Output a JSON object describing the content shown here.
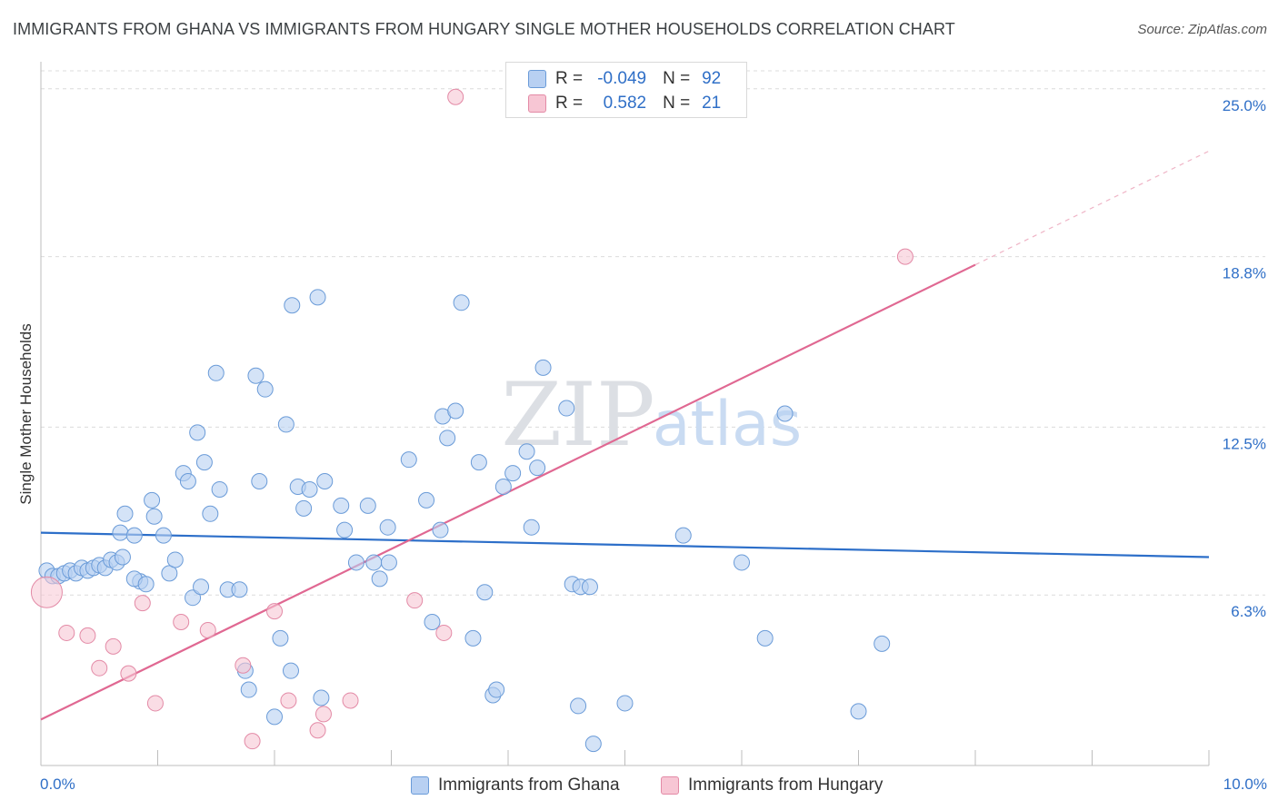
{
  "header": {
    "title": "IMMIGRANTS FROM GHANA VS IMMIGRANTS FROM HUNGARY SINGLE MOTHER HOUSEHOLDS CORRELATION CHART",
    "source": "Source: ZipAtlas.com"
  },
  "legend": {
    "ghana": {
      "r_label": "R =",
      "r_value": "-0.049",
      "n_label": "N =",
      "n_value": "92"
    },
    "hungary": {
      "r_label": "R =",
      "r_value": "0.582",
      "n_label": "N =",
      "n_value": "21"
    }
  },
  "bottom_legend": {
    "ghana": "Immigrants from Ghana",
    "hungary": "Immigrants from Hungary"
  },
  "colors": {
    "ghana_fill": "#b8d0f2",
    "ghana_stroke": "#6a9bd8",
    "ghana_line": "#2d6fc9",
    "hungary_fill": "#f7c6d4",
    "hungary_stroke": "#e38aa6",
    "hungary_line": "#e06892",
    "axis_text": "#2f6fc7",
    "grid": "#dcdcdc"
  },
  "watermark": {
    "zip": "ZIP",
    "atlas": "atlas"
  },
  "chart_data": {
    "type": "scatter",
    "title": "IMMIGRANTS FROM GHANA VS IMMIGRANTS FROM HUNGARY SINGLE MOTHER HOUSEHOLDS CORRELATION CHART",
    "xlabel": "",
    "ylabel": "Single Mother Households",
    "xlim": [
      0,
      10
    ],
    "ylim": [
      0,
      26
    ],
    "x_tick_labels": [
      {
        "value": 0,
        "label": "0.0%"
      },
      {
        "value": 10,
        "label": "10.0%"
      }
    ],
    "x_minor_ticks": [
      1,
      2,
      3,
      4,
      5,
      6,
      7,
      8,
      9,
      10
    ],
    "y_ticks": [
      {
        "value": 6.3,
        "label": "6.3%"
      },
      {
        "value": 12.5,
        "label": "12.5%"
      },
      {
        "value": 18.8,
        "label": "18.8%"
      },
      {
        "value": 25.0,
        "label": "25.0%"
      }
    ],
    "series": [
      {
        "name": "Immigrants from Ghana",
        "key": "ghana",
        "points": [
          [
            0.05,
            7.2
          ],
          [
            0.1,
            7.0
          ],
          [
            0.15,
            7.0
          ],
          [
            0.2,
            7.1
          ],
          [
            0.25,
            7.2
          ],
          [
            0.3,
            7.1
          ],
          [
            0.35,
            7.3
          ],
          [
            0.4,
            7.2
          ],
          [
            0.45,
            7.3
          ],
          [
            0.5,
            7.4
          ],
          [
            0.55,
            7.3
          ],
          [
            0.6,
            7.6
          ],
          [
            0.65,
            7.5
          ],
          [
            0.7,
            7.7
          ],
          [
            0.68,
            8.6
          ],
          [
            0.72,
            9.3
          ],
          [
            0.8,
            8.5
          ],
          [
            0.85,
            6.8
          ],
          [
            0.8,
            6.9
          ],
          [
            0.9,
            6.7
          ],
          [
            0.95,
            9.8
          ],
          [
            0.97,
            9.2
          ],
          [
            1.05,
            8.5
          ],
          [
            1.1,
            7.1
          ],
          [
            1.15,
            7.6
          ],
          [
            1.22,
            10.8
          ],
          [
            1.26,
            10.5
          ],
          [
            1.3,
            6.2
          ],
          [
            1.34,
            12.3
          ],
          [
            1.37,
            6.6
          ],
          [
            1.4,
            11.2
          ],
          [
            1.45,
            9.3
          ],
          [
            1.5,
            14.5
          ],
          [
            1.53,
            10.2
          ],
          [
            1.6,
            6.5
          ],
          [
            1.7,
            6.5
          ],
          [
            1.75,
            3.5
          ],
          [
            1.78,
            2.8
          ],
          [
            1.84,
            14.4
          ],
          [
            1.87,
            10.5
          ],
          [
            1.92,
            13.9
          ],
          [
            2.0,
            1.8
          ],
          [
            2.05,
            4.7
          ],
          [
            2.1,
            12.6
          ],
          [
            2.14,
            3.5
          ],
          [
            2.15,
            17.0
          ],
          [
            2.2,
            10.3
          ],
          [
            2.25,
            9.5
          ],
          [
            2.3,
            10.2
          ],
          [
            2.37,
            17.3
          ],
          [
            2.4,
            2.5
          ],
          [
            2.43,
            10.5
          ],
          [
            2.57,
            9.6
          ],
          [
            2.6,
            8.7
          ],
          [
            2.7,
            7.5
          ],
          [
            2.8,
            9.6
          ],
          [
            2.85,
            7.5
          ],
          [
            2.9,
            6.9
          ],
          [
            2.97,
            8.8
          ],
          [
            2.98,
            7.5
          ],
          [
            3.15,
            11.3
          ],
          [
            3.3,
            9.8
          ],
          [
            3.35,
            5.3
          ],
          [
            3.42,
            8.7
          ],
          [
            3.44,
            12.9
          ],
          [
            3.48,
            12.1
          ],
          [
            3.55,
            13.1
          ],
          [
            3.6,
            17.1
          ],
          [
            3.7,
            4.7
          ],
          [
            3.75,
            11.2
          ],
          [
            3.8,
            6.4
          ],
          [
            3.87,
            2.6
          ],
          [
            3.9,
            2.8
          ],
          [
            3.96,
            10.3
          ],
          [
            4.04,
            10.8
          ],
          [
            4.16,
            11.6
          ],
          [
            4.2,
            8.8
          ],
          [
            4.25,
            11.0
          ],
          [
            4.3,
            14.7
          ],
          [
            4.5,
            13.2
          ],
          [
            4.55,
            6.7
          ],
          [
            4.62,
            6.6
          ],
          [
            4.6,
            2.2
          ],
          [
            4.7,
            6.6
          ],
          [
            4.73,
            0.8
          ],
          [
            5.0,
            2.3
          ],
          [
            5.5,
            8.5
          ],
          [
            6.0,
            7.5
          ],
          [
            6.2,
            4.7
          ],
          [
            6.37,
            13.0
          ],
          [
            7.0,
            2.0
          ],
          [
            7.2,
            4.5
          ]
        ]
      },
      {
        "name": "Immigrants from Hungary",
        "key": "hungary",
        "points": [
          [
            0.05,
            6.4
          ],
          [
            0.22,
            4.9
          ],
          [
            0.4,
            4.8
          ],
          [
            0.5,
            3.6
          ],
          [
            0.62,
            4.4
          ],
          [
            0.75,
            3.4
          ],
          [
            0.87,
            6.0
          ],
          [
            0.98,
            2.3
          ],
          [
            1.2,
            5.3
          ],
          [
            1.43,
            5.0
          ],
          [
            1.73,
            3.7
          ],
          [
            1.81,
            0.9
          ],
          [
            2.0,
            5.7
          ],
          [
            2.12,
            2.4
          ],
          [
            2.37,
            1.3
          ],
          [
            2.42,
            1.9
          ],
          [
            2.65,
            2.4
          ],
          [
            3.2,
            6.1
          ],
          [
            3.45,
            4.9
          ],
          [
            3.55,
            24.7
          ],
          [
            7.4,
            18.8
          ]
        ]
      }
    ],
    "trendlines": [
      {
        "series": "Immigrants from Ghana",
        "x": [
          0,
          10
        ],
        "y": [
          8.6,
          7.7
        ],
        "dashed_extension": false
      },
      {
        "series": "Immigrants from Hungary",
        "x": [
          0,
          8.0
        ],
        "y": [
          1.7,
          18.5
        ],
        "dashed_to": [
          10.0,
          22.7
        ]
      }
    ]
  }
}
